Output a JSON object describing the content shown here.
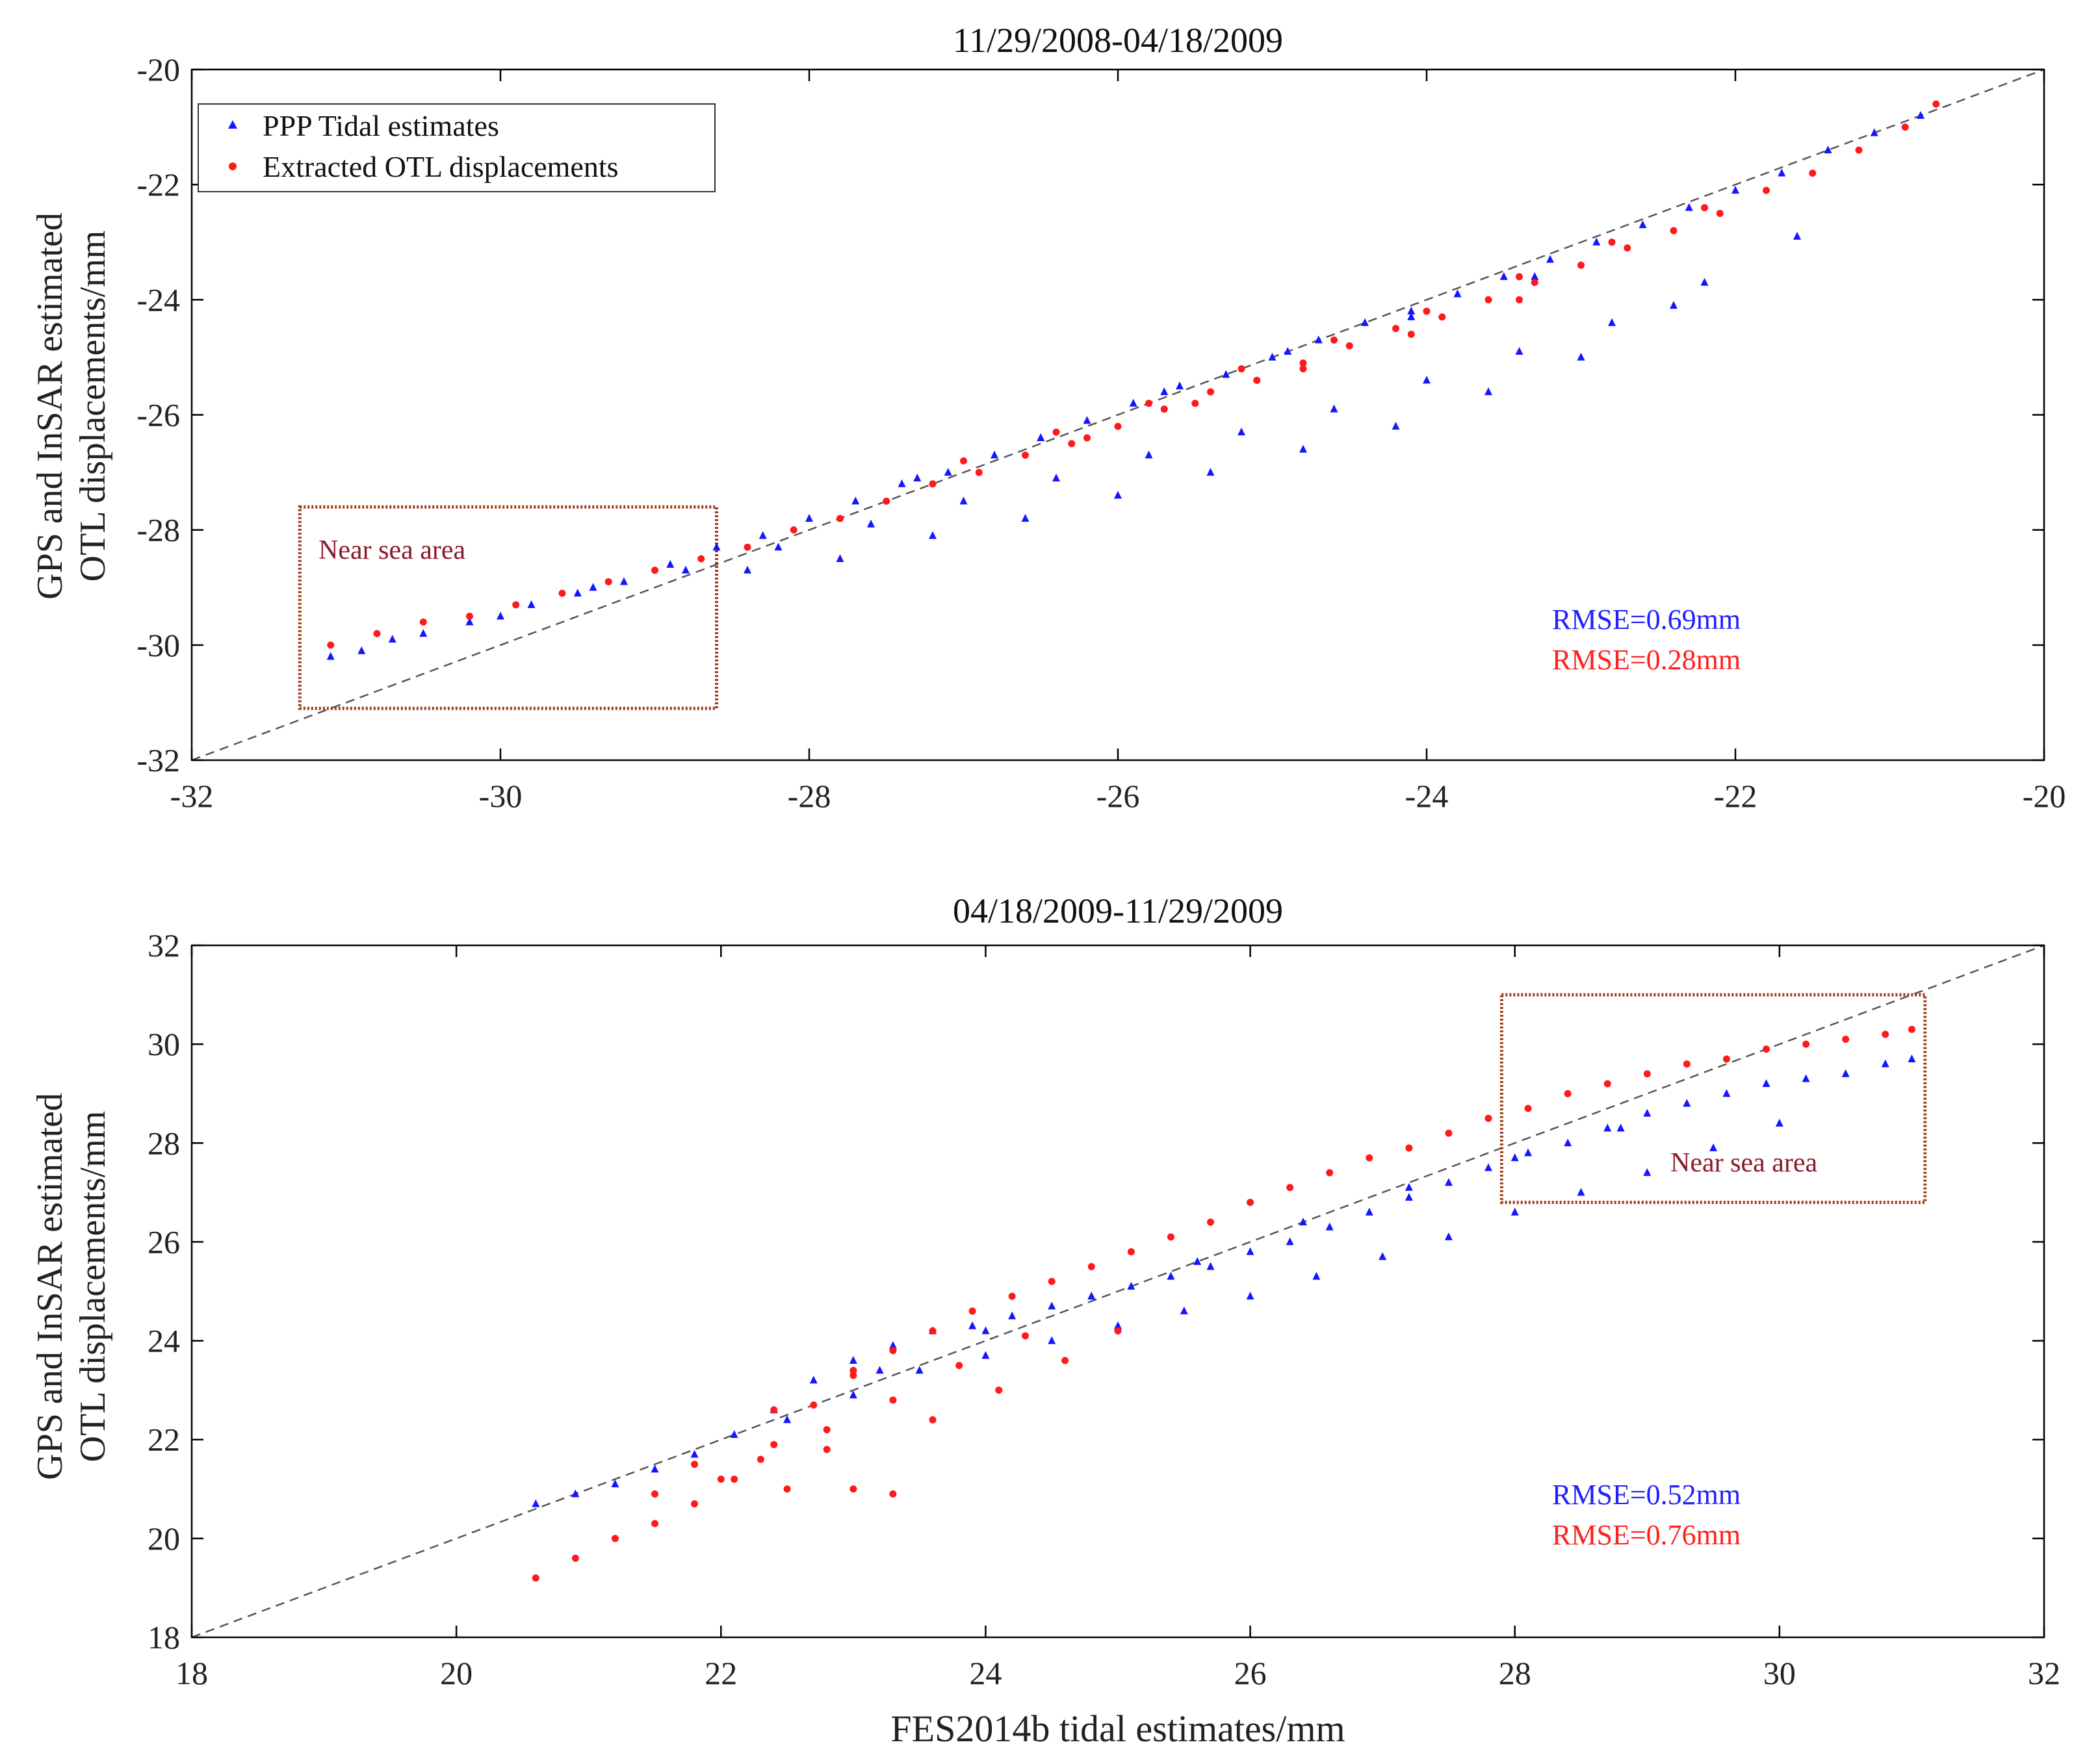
{
  "chart_data": [
    {
      "type": "scatter",
      "title": "11/29/2008-04/18/2009",
      "ylabel_line1": "GPS and InSAR estimated",
      "ylabel_line2": "OTL displacements/mm",
      "xlabel": "",
      "xlim": [
        -32,
        -20
      ],
      "ylim": [
        -32,
        -20
      ],
      "xticks": [
        "-32",
        "-30",
        "-28",
        "-26",
        "-24",
        "-22",
        "-20"
      ],
      "yticks": [
        "-32",
        "-30",
        "-28",
        "-26",
        "-24",
        "-22",
        "-20"
      ],
      "legend": {
        "placement": "top-left",
        "entries": [
          "PPP Tidal estimates",
          "Extracted OTL displacements"
        ]
      },
      "annotation": "Near sea area",
      "highlight_region": {
        "x": [
          -31.3,
          -28.6
        ],
        "y": [
          -31.1,
          -27.6
        ]
      },
      "rmse": [
        {
          "label": "RMSE=0.69mm",
          "color": "#1f1fff"
        },
        {
          "label": "RMSE=0.28mm",
          "color": "#ff2020"
        }
      ],
      "reference_line": "y = x",
      "series": [
        {
          "name": "PPP Tidal estimates",
          "color": "#1515ff",
          "marker": "triangle",
          "x": [
            -31.1,
            -30.9,
            -30.7,
            -30.5,
            -30.2,
            -30.0,
            -29.8,
            -29.5,
            -29.2,
            -28.9,
            -28.6,
            -28.3,
            -28.0,
            -27.7,
            -27.4,
            -27.1,
            -26.8,
            -26.5,
            -26.2,
            -25.9,
            -25.6,
            -25.3,
            -25.0,
            -24.7,
            -24.4,
            -24.1,
            -23.8,
            -23.5,
            -23.2,
            -22.9,
            -22.6,
            -22.3,
            -22.0,
            -21.7,
            -21.4,
            -21.1,
            -20.8,
            -29.4,
            -28.8,
            -28.2,
            -27.6,
            -27.0,
            -26.4,
            -25.8,
            -25.2,
            -24.6,
            -24.0,
            -23.4,
            -22.8,
            -22.2,
            -21.6,
            -28.4,
            -27.8,
            -27.2,
            -26.6,
            -26.0,
            -25.4,
            -24.8,
            -24.2,
            -23.6,
            -23.0,
            -22.4,
            -27.3,
            -26.5,
            -25.7,
            -24.9,
            -24.1,
            -23.3
          ],
          "y": [
            -30.2,
            -30.1,
            -29.9,
            -29.8,
            -29.6,
            -29.5,
            -29.3,
            -29.1,
            -28.9,
            -28.6,
            -28.3,
            -28.1,
            -27.8,
            -27.5,
            -27.2,
            -27.0,
            -26.7,
            -26.4,
            -26.1,
            -25.8,
            -25.5,
            -25.3,
            -25.0,
            -24.7,
            -24.4,
            -24.2,
            -23.9,
            -23.6,
            -23.3,
            -23.0,
            -22.7,
            -22.4,
            -22.1,
            -21.8,
            -21.4,
            -21.1,
            -20.8,
            -29.0,
            -28.7,
            -28.3,
            -27.9,
            -27.5,
            -27.1,
            -26.7,
            -26.3,
            -25.9,
            -25.4,
            -24.9,
            -24.4,
            -23.7,
            -22.9,
            -28.7,
            -28.5,
            -28.1,
            -27.8,
            -27.4,
            -27.0,
            -26.6,
            -26.2,
            -25.6,
            -25.0,
            -24.1,
            -27.1,
            -26.4,
            -25.6,
            -24.9,
            -24.3,
            -23.6
          ]
        },
        {
          "name": "Extracted OTL displacements",
          "color": "#ff1a1a",
          "marker": "dot",
          "x": [
            -31.1,
            -30.8,
            -30.5,
            -30.2,
            -29.9,
            -29.6,
            -29.3,
            -29.0,
            -28.7,
            -28.4,
            -28.1,
            -27.8,
            -27.5,
            -27.2,
            -26.9,
            -26.6,
            -26.3,
            -26.0,
            -25.7,
            -25.4,
            -25.1,
            -24.8,
            -24.5,
            -24.2,
            -23.9,
            -23.6,
            -23.3,
            -23.0,
            -22.7,
            -22.4,
            -22.1,
            -21.8,
            -21.5,
            -21.2,
            -20.9,
            -20.7,
            -27.0,
            -26.4,
            -25.8,
            -25.2,
            -24.6,
            -24.0,
            -23.4,
            -22.8,
            -22.2,
            -26.2,
            -25.5,
            -24.8,
            -24.1,
            -23.4
          ],
          "y": [
            -30.0,
            -29.8,
            -29.6,
            -29.5,
            -29.3,
            -29.1,
            -28.9,
            -28.7,
            -28.5,
            -28.3,
            -28.0,
            -27.8,
            -27.5,
            -27.2,
            -27.0,
            -26.7,
            -26.5,
            -26.2,
            -25.9,
            -25.6,
            -25.4,
            -25.1,
            -24.8,
            -24.5,
            -24.3,
            -24.0,
            -23.7,
            -23.4,
            -23.1,
            -22.8,
            -22.5,
            -22.1,
            -21.8,
            -21.4,
            -21.0,
            -20.6,
            -26.8,
            -26.3,
            -25.8,
            -25.2,
            -24.7,
            -24.2,
            -23.6,
            -23.0,
            -22.4,
            -26.4,
            -25.8,
            -25.2,
            -24.6,
            -24.0
          ]
        }
      ]
    },
    {
      "type": "scatter",
      "title": "04/18/2009-11/29/2009",
      "ylabel_line1": "GPS and InSAR estimated",
      "ylabel_line2": "OTL displacements/mm",
      "xlabel": "FES2014b tidal estimates/mm",
      "xlim": [
        18,
        32
      ],
      "ylim": [
        18,
        32
      ],
      "xticks": [
        "18",
        "20",
        "22",
        "24",
        "26",
        "28",
        "30",
        "32"
      ],
      "yticks": [
        "18",
        "20",
        "22",
        "24",
        "26",
        "28",
        "30",
        "32"
      ],
      "annotation": "Near sea area",
      "highlight_region": {
        "x": [
          27.9,
          31.1
        ],
        "y": [
          26.8,
          31.0
        ]
      },
      "rmse": [
        {
          "label": "RMSE=0.52mm",
          "color": "#1f1fff"
        },
        {
          "label": "RMSE=0.76mm",
          "color": "#ff2020"
        }
      ],
      "reference_line": "y = x",
      "series": [
        {
          "name": "PPP Tidal estimates",
          "color": "#1515ff",
          "marker": "triangle",
          "x": [
            20.6,
            20.9,
            21.2,
            21.5,
            21.8,
            22.1,
            22.4,
            22.7,
            23.0,
            23.3,
            23.6,
            23.9,
            24.2,
            24.5,
            24.8,
            25.1,
            25.4,
            25.7,
            26.0,
            26.3,
            26.6,
            26.9,
            27.2,
            27.5,
            27.8,
            28.1,
            28.4,
            28.7,
            29.0,
            29.3,
            29.6,
            29.9,
            30.2,
            30.5,
            30.8,
            31.0,
            22.5,
            23.0,
            23.5,
            24.0,
            24.5,
            25.0,
            25.5,
            26.0,
            26.5,
            27.0,
            27.5,
            28.0,
            28.5,
            29.0,
            29.5,
            30.0,
            23.2,
            24.0,
            24.8,
            25.6,
            26.4,
            27.2,
            28.0,
            28.8
          ],
          "y": [
            20.7,
            20.9,
            21.1,
            21.4,
            21.7,
            22.1,
            22.6,
            23.2,
            23.6,
            23.9,
            24.2,
            24.3,
            24.5,
            24.7,
            24.9,
            25.1,
            25.3,
            25.5,
            25.8,
            26.0,
            26.3,
            26.6,
            26.9,
            27.2,
            27.5,
            27.8,
            28.0,
            28.3,
            28.6,
            28.8,
            29.0,
            29.2,
            29.3,
            29.4,
            29.6,
            29.7,
            22.4,
            22.9,
            23.4,
            23.7,
            24.0,
            24.3,
            24.6,
            24.9,
            25.3,
            25.7,
            26.1,
            26.6,
            27.0,
            27.4,
            27.9,
            28.4,
            23.4,
            24.2,
            24.9,
            25.6,
            26.4,
            27.1,
            27.7,
            28.3
          ]
        },
        {
          "name": "Extracted OTL displacements",
          "color": "#ff1a1a",
          "marker": "dot",
          "x": [
            20.6,
            20.9,
            21.2,
            21.5,
            21.8,
            22.1,
            22.4,
            22.7,
            23.0,
            23.3,
            23.6,
            23.9,
            24.2,
            24.5,
            24.8,
            25.1,
            25.4,
            25.7,
            26.0,
            26.3,
            26.6,
            26.9,
            27.2,
            27.5,
            27.8,
            28.1,
            28.4,
            28.7,
            29.0,
            29.3,
            29.6,
            29.9,
            30.2,
            30.5,
            30.8,
            31.0,
            21.5,
            22.0,
            22.5,
            23.0,
            23.3,
            22.8,
            23.6,
            24.1,
            24.6,
            25.0,
            22.3,
            22.8,
            23.3,
            23.8,
            24.3,
            21.8,
            22.4,
            23.0
          ],
          "y": [
            19.2,
            19.6,
            20.0,
            20.3,
            20.7,
            21.2,
            21.9,
            22.7,
            23.3,
            23.8,
            24.2,
            24.6,
            24.9,
            25.2,
            25.5,
            25.8,
            26.1,
            26.4,
            26.8,
            27.1,
            27.4,
            27.7,
            27.9,
            28.2,
            28.5,
            28.7,
            29.0,
            29.2,
            29.4,
            29.6,
            29.7,
            29.9,
            30.0,
            30.1,
            30.2,
            30.3,
            20.9,
            21.2,
            21.0,
            21.0,
            20.9,
            21.8,
            22.4,
            23.0,
            23.6,
            24.2,
            21.6,
            22.2,
            22.8,
            23.5,
            24.1,
            21.5,
            22.6,
            23.4
          ]
        }
      ]
    }
  ]
}
